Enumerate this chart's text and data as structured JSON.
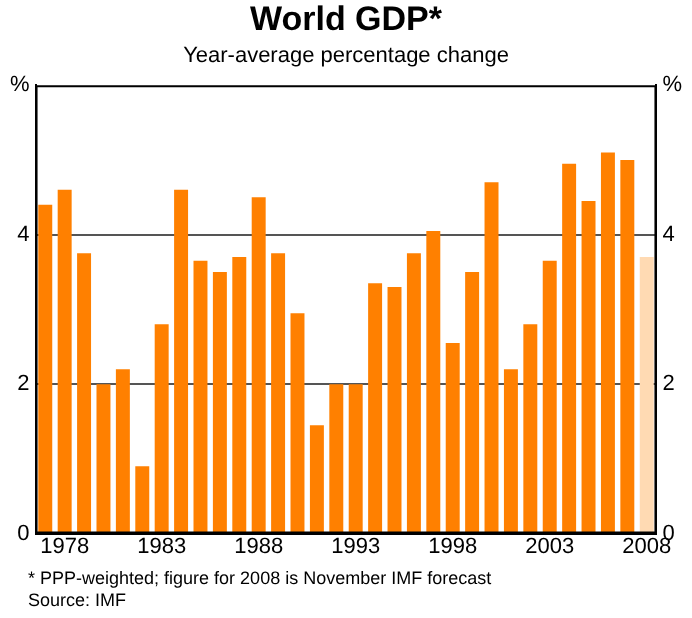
{
  "chart_data": {
    "type": "bar",
    "title": "World GDP*",
    "subtitle": "Year-average percentage change",
    "categories": [
      null,
      "1978",
      null,
      null,
      null,
      null,
      "1983",
      null,
      null,
      null,
      null,
      "1988",
      null,
      null,
      null,
      null,
      "1993",
      null,
      null,
      null,
      null,
      "1998",
      null,
      null,
      null,
      null,
      "2003",
      null,
      null,
      null,
      null,
      "2008"
    ],
    "values": [
      4.4,
      4.6,
      3.75,
      2.0,
      2.2,
      0.9,
      2.8,
      4.6,
      3.65,
      3.5,
      3.7,
      4.5,
      3.75,
      2.95,
      1.45,
      2.0,
      2.0,
      3.35,
      3.3,
      3.75,
      4.05,
      2.55,
      3.5,
      4.7,
      2.2,
      2.8,
      3.65,
      4.95,
      4.45,
      5.1,
      5.0,
      3.7
    ],
    "colors": [
      "#ff8000",
      "#ff8000",
      "#ff8000",
      "#ff8000",
      "#ff8000",
      "#ff8000",
      "#ff8000",
      "#ff8000",
      "#ff8000",
      "#ff8000",
      "#ff8000",
      "#ff8000",
      "#ff8000",
      "#ff8000",
      "#ff8000",
      "#ff8000",
      "#ff8000",
      "#ff8000",
      "#ff8000",
      "#ff8000",
      "#ff8000",
      "#ff8000",
      "#ff8000",
      "#ff8000",
      "#ff8000",
      "#ff8000",
      "#ff8000",
      "#ff8000",
      "#ff8000",
      "#ff8000",
      "#ff8000",
      "#ffdab3"
    ],
    "ylim": [
      0,
      6
    ],
    "yticks": [
      0,
      2,
      4,
      {
        "value": 6,
        "label": "%"
      }
    ],
    "y2lim": [
      0,
      6
    ],
    "y2ticks": [
      0,
      2,
      4,
      {
        "value": 6,
        "label": "%"
      }
    ],
    "grid": "y",
    "legend": false,
    "annotations": [
      "*   PPP-weighted; figure for 2008 is November IMF forecast",
      "Source: IMF"
    ]
  }
}
